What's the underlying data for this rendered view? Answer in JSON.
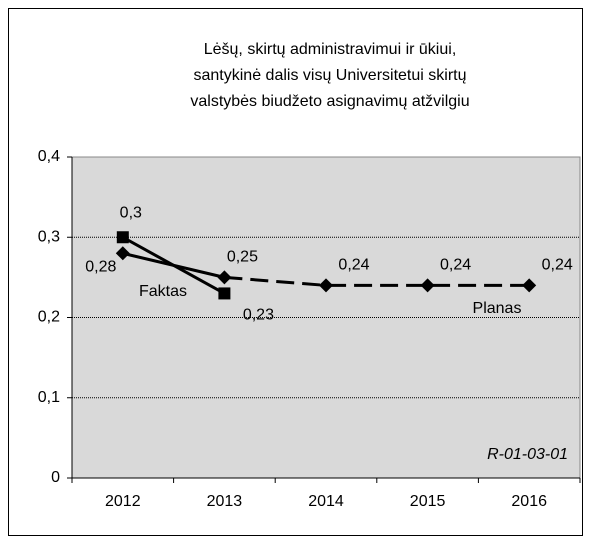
{
  "chart_data": {
    "type": "line",
    "title": [
      "Lėšų, skirtų administravimui ir ūkiui,",
      "santykinė dalis visų Universitetui skirtų",
      "valstybės biudžeto asignavimų atžvilgiu"
    ],
    "categories": [
      "2012",
      "2013",
      "2014",
      "2015",
      "2016"
    ],
    "series": [
      {
        "name": "Faktas",
        "color": "#000000",
        "marker": "square",
        "values": [
          0.3,
          0.23,
          null,
          null,
          null
        ],
        "value_labels": [
          "0,3",
          "0,23",
          null,
          null,
          null
        ]
      },
      {
        "name": "Planas",
        "color": "#000000",
        "marker": "diamond",
        "values": [
          0.28,
          0.25,
          0.24,
          0.24,
          0.24
        ],
        "value_labels": [
          "0,28",
          "0,25",
          "0,24",
          "0,24",
          "0,24"
        ]
      }
    ],
    "ylim": [
      0,
      0.4
    ],
    "yticks": [
      0,
      {
        "value": 0.1,
        "label": "0,1"
      },
      {
        "value": 0.2,
        "label": "0,2"
      },
      {
        "value": 0.3,
        "label": "0,3"
      },
      {
        "value": 0.4,
        "label": "0,4"
      }
    ],
    "grid": true,
    "annotation": "R-01-03-01"
  }
}
